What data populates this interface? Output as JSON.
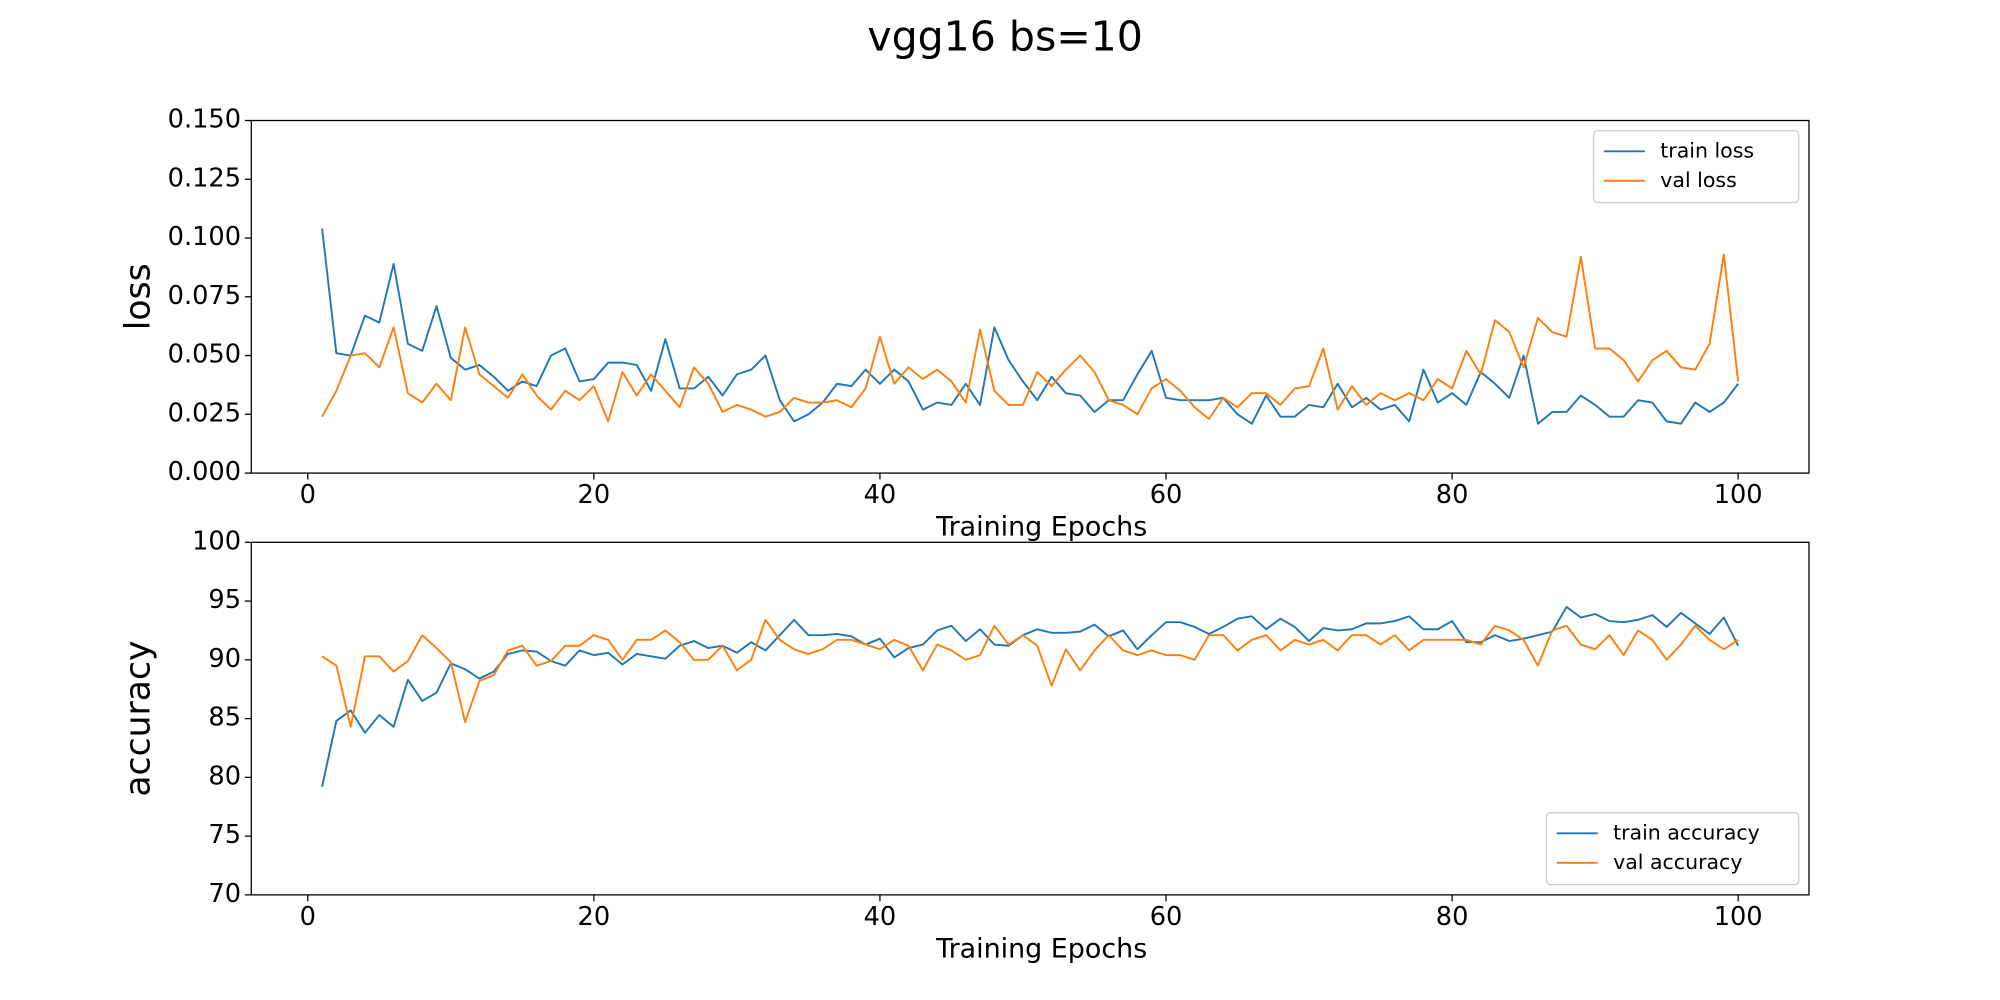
{
  "title": "vgg16 bs=10",
  "chart_data": [
    {
      "type": "line",
      "xlabel": "Training Epochs",
      "ylabel": "loss",
      "legend": "upper right",
      "xlim": [
        -3.95,
        104.95
      ],
      "ylim": [
        0,
        0.15
      ],
      "xticks": [
        0,
        20,
        40,
        60,
        80,
        100
      ],
      "yticks": [
        {
          "value": 0,
          "label": "0.000"
        },
        {
          "value": 0.025,
          "label": "0.025"
        },
        {
          "value": 0.05,
          "label": "0.050"
        },
        {
          "value": 0.075,
          "label": "0.075"
        },
        {
          "value": 0.1,
          "label": "0.100"
        },
        {
          "value": 0.125,
          "label": "0.125"
        },
        {
          "value": 0.15,
          "label": "0.150"
        }
      ],
      "x": [
        1,
        2,
        3,
        4,
        5,
        6,
        7,
        8,
        9,
        10,
        11,
        12,
        13,
        14,
        15,
        16,
        17,
        18,
        19,
        20,
        21,
        22,
        23,
        24,
        25,
        26,
        27,
        28,
        29,
        30,
        31,
        32,
        33,
        34,
        35,
        36,
        37,
        38,
        39,
        40,
        41,
        42,
        43,
        44,
        45,
        46,
        47,
        48,
        49,
        50,
        51,
        52,
        53,
        54,
        55,
        56,
        57,
        58,
        59,
        60,
        61,
        62,
        63,
        64,
        65,
        66,
        67,
        68,
        69,
        70,
        71,
        72,
        73,
        74,
        75,
        76,
        77,
        78,
        79,
        80,
        81,
        82,
        83,
        84,
        85,
        86,
        87,
        88,
        89,
        90,
        91,
        92,
        93,
        94,
        95,
        96,
        97,
        98,
        99,
        100
      ],
      "series": [
        {
          "name": "train loss",
          "color": "#1f77b4",
          "values": [
            0.104,
            0.051,
            0.05,
            0.067,
            0.064,
            0.089,
            0.055,
            0.052,
            0.071,
            0.049,
            0.044,
            0.046,
            0.041,
            0.035,
            0.039,
            0.037,
            0.05,
            0.053,
            0.039,
            0.04,
            0.047,
            0.047,
            0.046,
            0.035,
            0.057,
            0.036,
            0.036,
            0.041,
            0.033,
            0.042,
            0.044,
            0.05,
            0.031,
            0.022,
            0.025,
            0.03,
            0.038,
            0.037,
            0.044,
            0.038,
            0.044,
            0.039,
            0.027,
            0.03,
            0.029,
            0.038,
            0.029,
            0.062,
            0.048,
            0.039,
            0.031,
            0.041,
            0.034,
            0.033,
            0.026,
            0.031,
            0.031,
            0.042,
            0.052,
            0.032,
            0.031,
            0.031,
            0.031,
            0.032,
            0.025,
            0.021,
            0.033,
            0.024,
            0.024,
            0.029,
            0.028,
            0.038,
            0.028,
            0.032,
            0.027,
            0.029,
            0.022,
            0.044,
            0.03,
            0.034,
            0.029,
            0.043,
            0.038,
            0.032,
            0.05,
            0.021,
            0.026,
            0.026,
            0.033,
            0.029,
            0.024,
            0.024,
            0.031,
            0.03,
            0.022,
            0.021,
            0.03,
            0.026,
            0.03,
            0.038
          ]
        },
        {
          "name": "val loss",
          "color": "#ff7f0e",
          "values": [
            0.024,
            0.035,
            0.05,
            0.051,
            0.045,
            0.062,
            0.034,
            0.03,
            0.038,
            0.031,
            0.062,
            0.042,
            0.037,
            0.032,
            0.042,
            0.033,
            0.027,
            0.035,
            0.031,
            0.037,
            0.022,
            0.043,
            0.033,
            0.042,
            0.035,
            0.028,
            0.045,
            0.038,
            0.026,
            0.029,
            0.027,
            0.024,
            0.026,
            0.032,
            0.03,
            0.03,
            0.031,
            0.028,
            0.036,
            0.058,
            0.038,
            0.045,
            0.04,
            0.044,
            0.039,
            0.03,
            0.061,
            0.035,
            0.029,
            0.029,
            0.043,
            0.037,
            0.044,
            0.05,
            0.043,
            0.031,
            0.029,
            0.025,
            0.036,
            0.04,
            0.035,
            0.028,
            0.023,
            0.032,
            0.028,
            0.034,
            0.034,
            0.029,
            0.036,
            0.037,
            0.053,
            0.027,
            0.037,
            0.029,
            0.034,
            0.031,
            0.034,
            0.031,
            0.04,
            0.036,
            0.052,
            0.042,
            0.065,
            0.06,
            0.045,
            0.066,
            0.06,
            0.058,
            0.092,
            0.053,
            0.053,
            0.048,
            0.039,
            0.048,
            0.052,
            0.045,
            0.044,
            0.055,
            0.093,
            0.039
          ]
        }
      ]
    },
    {
      "type": "line",
      "xlabel": "Training Epochs",
      "ylabel": "accuracy",
      "legend": "lower right",
      "xlim": [
        -3.95,
        104.95
      ],
      "ylim": [
        70,
        100
      ],
      "xticks": [
        0,
        20,
        40,
        60,
        80,
        100
      ],
      "yticks": [
        70,
        75,
        80,
        85,
        90,
        95,
        100
      ],
      "x": [
        1,
        2,
        3,
        4,
        5,
        6,
        7,
        8,
        9,
        10,
        11,
        12,
        13,
        14,
        15,
        16,
        17,
        18,
        19,
        20,
        21,
        22,
        23,
        24,
        25,
        26,
        27,
        28,
        29,
        30,
        31,
        32,
        33,
        34,
        35,
        36,
        37,
        38,
        39,
        40,
        41,
        42,
        43,
        44,
        45,
        46,
        47,
        48,
        49,
        50,
        51,
        52,
        53,
        54,
        55,
        56,
        57,
        58,
        59,
        60,
        61,
        62,
        63,
        64,
        65,
        66,
        67,
        68,
        69,
        70,
        71,
        72,
        73,
        74,
        75,
        76,
        77,
        78,
        79,
        80,
        81,
        82,
        83,
        84,
        85,
        86,
        87,
        88,
        89,
        90,
        91,
        92,
        93,
        94,
        95,
        96,
        97,
        98,
        99,
        100
      ],
      "series": [
        {
          "name": "train accuracy",
          "color": "#1f77b4",
          "values": [
            79.2,
            84.8,
            85.7,
            83.8,
            85.3,
            84.3,
            88.3,
            86.5,
            87.2,
            89.7,
            89.2,
            88.4,
            89.0,
            90.5,
            90.8,
            90.7,
            89.9,
            89.5,
            90.8,
            90.4,
            90.6,
            89.6,
            90.5,
            90.3,
            90.1,
            91.2,
            91.6,
            91.0,
            91.2,
            90.6,
            91.5,
            90.8,
            92.1,
            93.4,
            92.1,
            92.1,
            92.2,
            92.0,
            91.3,
            91.8,
            90.2,
            91.0,
            91.3,
            92.5,
            92.9,
            91.6,
            92.6,
            91.3,
            91.2,
            92.1,
            92.6,
            92.3,
            92.3,
            92.4,
            93.0,
            92.0,
            92.5,
            90.9,
            92.1,
            93.2,
            93.2,
            92.8,
            92.2,
            92.8,
            93.5,
            93.7,
            92.6,
            93.5,
            92.8,
            91.6,
            92.7,
            92.5,
            92.6,
            93.1,
            93.1,
            93.3,
            93.7,
            92.6,
            92.6,
            93.3,
            91.5,
            91.5,
            92.1,
            91.6,
            91.8,
            92.1,
            92.4,
            94.5,
            93.6,
            93.9,
            93.3,
            93.2,
            93.4,
            93.8,
            92.8,
            94.0,
            93.1,
            92.2,
            93.6,
            91.2
          ]
        },
        {
          "name": "val accuracy",
          "color": "#ff7f0e",
          "values": [
            90.3,
            89.5,
            84.3,
            90.3,
            90.3,
            89.0,
            89.9,
            92.1,
            91.0,
            89.8,
            84.7,
            88.2,
            88.7,
            90.8,
            91.2,
            89.5,
            89.9,
            91.2,
            91.2,
            92.1,
            91.7,
            90.0,
            91.7,
            91.7,
            92.5,
            91.5,
            90.0,
            90.0,
            91.2,
            89.1,
            90.0,
            93.4,
            91.7,
            90.9,
            90.5,
            90.9,
            91.7,
            91.7,
            91.3,
            90.9,
            91.7,
            91.2,
            89.1,
            91.3,
            90.8,
            90.0,
            90.4,
            92.9,
            91.3,
            92.1,
            91.2,
            87.8,
            90.9,
            89.1,
            90.8,
            92.1,
            90.8,
            90.4,
            90.8,
            90.4,
            90.4,
            90.0,
            92.1,
            92.1,
            90.8,
            91.7,
            92.1,
            90.8,
            91.7,
            91.3,
            91.7,
            90.8,
            92.1,
            92.1,
            91.3,
            92.1,
            90.8,
            91.7,
            91.7,
            91.7,
            91.7,
            91.3,
            92.9,
            92.5,
            91.7,
            89.5,
            92.5,
            92.9,
            91.3,
            90.9,
            92.1,
            90.4,
            92.5,
            91.7,
            90.0,
            91.3,
            92.9,
            91.7,
            90.9,
            91.7
          ]
        }
      ]
    }
  ]
}
